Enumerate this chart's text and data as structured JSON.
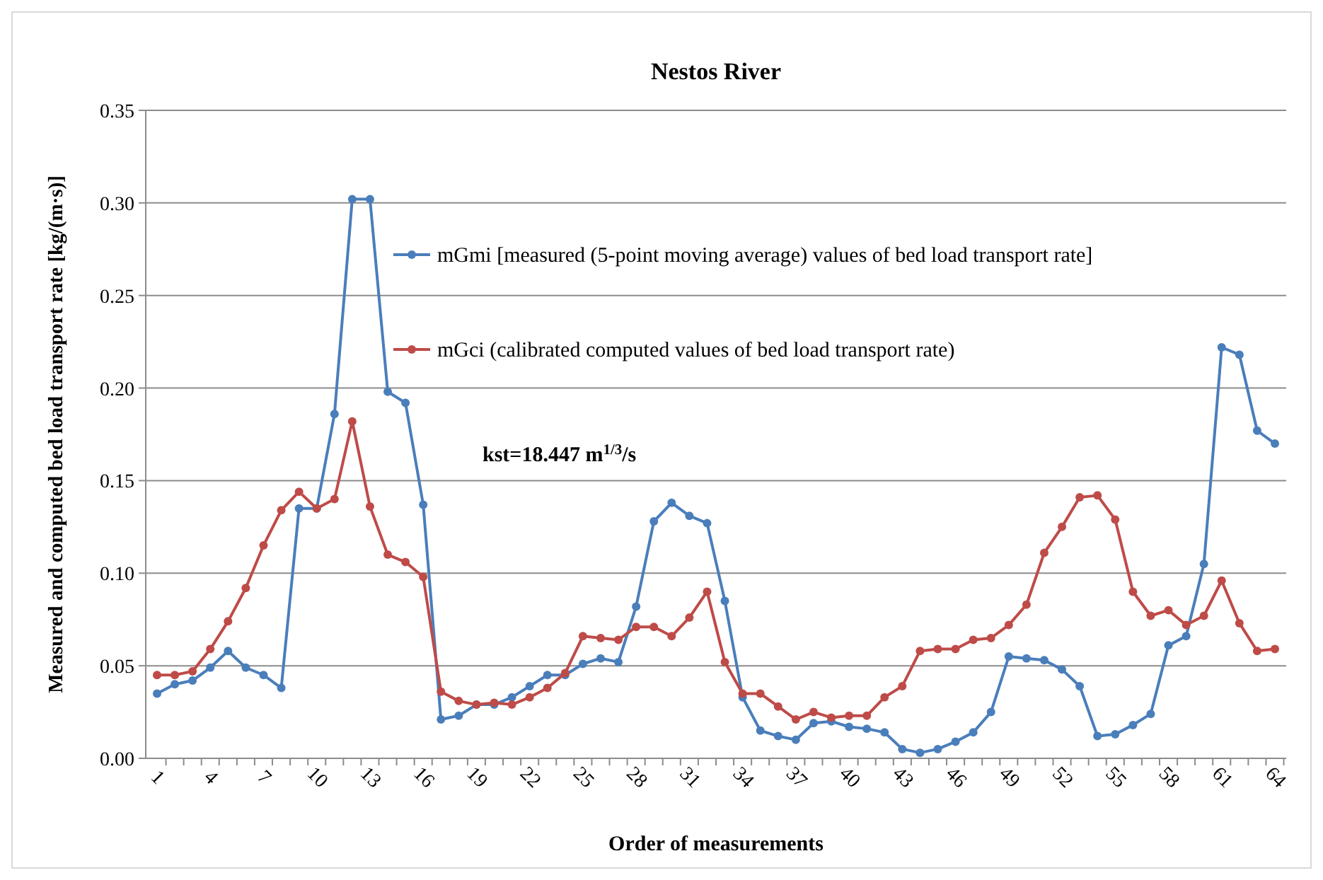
{
  "chart_data": {
    "type": "line",
    "title": "Nestos River",
    "xlabel": "Order of measurements",
    "ylabel": "Measured and computed bed load transport rate [kg/(m·s)]",
    "categories": [
      "1",
      null,
      null,
      "4",
      null,
      null,
      "7",
      null,
      null,
      "10",
      null,
      null,
      "13",
      null,
      null,
      "16",
      null,
      null,
      "19",
      null,
      null,
      "22",
      null,
      null,
      "25",
      null,
      null,
      "28",
      null,
      null,
      "31",
      null,
      null,
      "34",
      null,
      null,
      "37",
      null,
      null,
      "40",
      null,
      null,
      "43",
      null,
      null,
      "46",
      null,
      null,
      "49",
      null,
      null,
      "52",
      null,
      null,
      "55",
      null,
      null,
      "58",
      null,
      null,
      "61",
      null,
      null,
      "64"
    ],
    "series": [
      {
        "name": "mGmi [measured (5-point moving average) values of bed load transport rate]",
        "color": "#4a7ebb",
        "values": [
          0.035,
          0.04,
          0.042,
          0.049,
          0.058,
          0.049,
          0.045,
          0.038,
          0.135,
          0.135,
          0.186,
          0.302,
          0.302,
          0.198,
          0.192,
          0.137,
          0.021,
          0.023,
          0.029,
          0.029,
          0.033,
          0.039,
          0.045,
          0.045,
          0.051,
          0.054,
          0.052,
          0.082,
          0.128,
          0.138,
          0.131,
          0.127,
          0.085,
          0.033,
          0.015,
          0.012,
          0.01,
          0.019,
          0.02,
          0.017,
          0.016,
          0.014,
          0.005,
          0.003,
          0.005,
          0.009,
          0.014,
          0.025,
          0.055,
          0.054,
          0.053,
          0.048,
          0.039,
          0.012,
          0.013,
          0.018,
          0.024,
          0.061,
          0.066,
          0.105,
          0.222,
          0.218,
          0.177,
          0.17
        ]
      },
      {
        "name": "mGci (calibrated computed values of bed load transport rate)",
        "color": "#be4b48",
        "values": [
          0.045,
          0.045,
          0.047,
          0.059,
          0.074,
          0.092,
          0.115,
          0.134,
          0.144,
          0.135,
          0.14,
          0.182,
          0.136,
          0.11,
          0.106,
          0.098,
          0.036,
          0.031,
          0.029,
          0.03,
          0.029,
          0.033,
          0.038,
          0.046,
          0.066,
          0.065,
          0.064,
          0.071,
          0.071,
          0.066,
          0.076,
          0.09,
          0.052,
          0.035,
          0.035,
          0.028,
          0.021,
          0.025,
          0.022,
          0.023,
          0.023,
          0.033,
          0.039,
          0.058,
          0.059,
          0.059,
          0.064,
          0.065,
          0.072,
          0.083,
          0.111,
          0.125,
          0.141,
          0.142,
          0.129,
          0.09,
          0.077,
          0.08,
          0.072,
          0.077,
          0.096,
          0.073,
          0.058,
          0.059
        ]
      }
    ],
    "ylim": [
      0,
      0.35
    ],
    "yticks": [
      {
        "value": 0,
        "label": "0.00"
      },
      {
        "value": 0.05,
        "label": "0.05"
      },
      {
        "value": 0.1,
        "label": "0.10"
      },
      {
        "value": 0.15,
        "label": "0.15"
      },
      {
        "value": 0.2,
        "label": "0.20"
      },
      {
        "value": 0.25,
        "label": "0.25"
      },
      {
        "value": 0.3,
        "label": "0.30"
      },
      {
        "value": 0.35,
        "label": "0.35"
      }
    ],
    "grid": "y",
    "legend": "top right",
    "marker": "circle",
    "line_style": "solid",
    "annotations": [
      "kst=18.447 m$^{1/3}$/s"
    ]
  }
}
